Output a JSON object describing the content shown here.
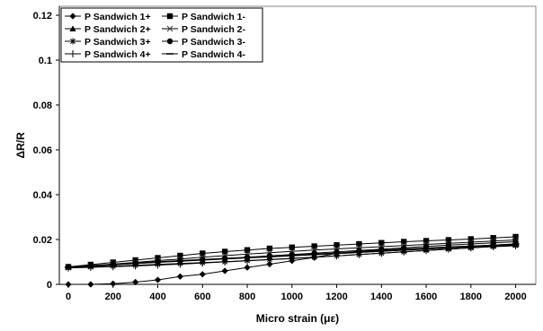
{
  "chart_data": {
    "type": "line",
    "xlabel": "Micro strain (με)",
    "ylabel": "ΔR/R",
    "xlim": [
      0,
      2050
    ],
    "ylim": [
      0,
      0.12
    ],
    "x_ticks": [
      "0",
      "200",
      "400",
      "600",
      "800",
      "1000",
      "1200",
      "1400",
      "1600",
      "1800",
      "2000"
    ],
    "y_ticks": [
      "0",
      "0.02",
      "0.04",
      "0.06",
      "0.08",
      "0.1",
      "0.12"
    ],
    "grid": false,
    "legend_placement": "top-left",
    "x": [
      0,
      100,
      200,
      300,
      400,
      500,
      600,
      700,
      800,
      900,
      1000,
      1100,
      1200,
      1300,
      1400,
      1500,
      1600,
      1700,
      1800,
      1900,
      2000
    ],
    "series": [
      {
        "name": "P Sandwich 1+",
        "marker": "diamond",
        "values": [
          0,
          0,
          0.0003,
          0.001,
          0.002,
          0.0035,
          0.0045,
          0.006,
          0.0075,
          0.009,
          0.0105,
          0.012,
          0.0138,
          0.0148,
          0.0153,
          0.0158,
          0.0162,
          0.0167,
          0.0171,
          0.0175,
          0.018
        ]
      },
      {
        "name": "P Sandwich 1-",
        "marker": "square",
        "values": [
          0.0078,
          0.0088,
          0.0098,
          0.0108,
          0.0118,
          0.0128,
          0.0138,
          0.0146,
          0.0153,
          0.016,
          0.0165,
          0.017,
          0.0175,
          0.018,
          0.0185,
          0.019,
          0.0194,
          0.0198,
          0.0202,
          0.0207,
          0.0212
        ]
      },
      {
        "name": "P Sandwich 2+",
        "marker": "triangle",
        "values": [
          0.0078,
          0.0083,
          0.0088,
          0.0093,
          0.0098,
          0.0103,
          0.0108,
          0.0113,
          0.0118,
          0.0122,
          0.0127,
          0.0132,
          0.0137,
          0.0142,
          0.0147,
          0.0152,
          0.0157,
          0.0162,
          0.0167,
          0.0172,
          0.0177
        ]
      },
      {
        "name": "P Sandwich 2-",
        "marker": "x",
        "values": [
          0.0075,
          0.0082,
          0.009,
          0.0098,
          0.0106,
          0.0113,
          0.0121,
          0.0128,
          0.0135,
          0.0141,
          0.0147,
          0.0153,
          0.0158,
          0.0163,
          0.0168,
          0.0173,
          0.0178,
          0.0183,
          0.0188,
          0.0193,
          0.0198
        ]
      },
      {
        "name": "P Sandwich 3+",
        "marker": "star",
        "values": [
          0.0075,
          0.0078,
          0.0081,
          0.0085,
          0.0089,
          0.0093,
          0.0097,
          0.0101,
          0.0106,
          0.0111,
          0.0116,
          0.0121,
          0.0127,
          0.0133,
          0.0139,
          0.0145,
          0.0151,
          0.0157,
          0.0163,
          0.0169,
          0.0174
        ]
      },
      {
        "name": "P Sandwich 3-",
        "marker": "circle",
        "values": [
          0.0078,
          0.0084,
          0.009,
          0.0096,
          0.0101,
          0.0106,
          0.0111,
          0.0116,
          0.0121,
          0.0127,
          0.0133,
          0.0139,
          0.0145,
          0.0151,
          0.0157,
          0.0163,
          0.0169,
          0.0175,
          0.018,
          0.0185,
          0.019
        ]
      },
      {
        "name": "P Sandwich 4+",
        "marker": "plus",
        "values": [
          0.0073,
          0.0076,
          0.0079,
          0.0082,
          0.0086,
          0.009,
          0.0095,
          0.01,
          0.0105,
          0.011,
          0.0115,
          0.0121,
          0.0127,
          0.0133,
          0.0139,
          0.0145,
          0.0151,
          0.0157,
          0.0163,
          0.0168,
          0.0172
        ]
      },
      {
        "name": "P Sandwich 4-",
        "marker": "dash",
        "values": [
          0.0076,
          0.0081,
          0.0087,
          0.0093,
          0.0099,
          0.0104,
          0.011,
          0.0115,
          0.012,
          0.0125,
          0.013,
          0.0135,
          0.014,
          0.0145,
          0.015,
          0.0155,
          0.016,
          0.0165,
          0.017,
          0.0175,
          0.018
        ]
      }
    ]
  }
}
